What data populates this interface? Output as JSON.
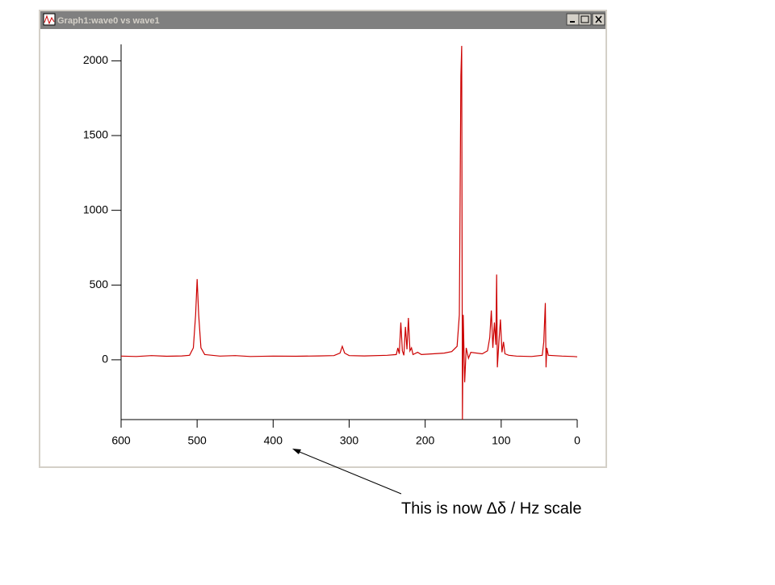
{
  "window": {
    "title": "Graph1:wave0 vs wave1"
  },
  "chart_data": {
    "type": "line",
    "annotation": "This is now Δδ / Hz scale",
    "x": [
      600,
      580,
      560,
      540,
      520,
      510,
      505,
      502,
      500,
      498,
      495,
      490,
      470,
      450,
      430,
      400,
      370,
      340,
      320,
      312,
      309,
      306,
      300,
      280,
      250,
      238,
      236,
      234,
      232,
      230,
      228,
      226,
      224,
      222,
      220,
      218,
      216,
      210,
      205,
      190,
      175,
      165,
      158,
      155,
      153,
      152,
      151,
      150,
      148,
      146,
      143,
      140,
      125,
      118,
      115,
      113,
      111,
      109,
      107,
      106,
      105,
      103,
      101,
      99,
      97,
      95,
      90,
      80,
      60,
      46,
      44,
      42,
      41,
      40,
      38,
      20,
      5,
      0
    ],
    "values": [
      25,
      22,
      28,
      24,
      26,
      30,
      80,
      300,
      540,
      300,
      80,
      35,
      25,
      28,
      22,
      25,
      24,
      26,
      28,
      45,
      90,
      45,
      28,
      26,
      30,
      35,
      80,
      40,
      250,
      60,
      30,
      220,
      70,
      280,
      60,
      80,
      35,
      50,
      35,
      40,
      45,
      55,
      90,
      300,
      1900,
      2100,
      -400,
      300,
      -150,
      80,
      10,
      50,
      40,
      60,
      150,
      330,
      80,
      250,
      100,
      570,
      -50,
      120,
      270,
      50,
      120,
      40,
      30,
      25,
      22,
      30,
      120,
      380,
      -50,
      80,
      30,
      25,
      22,
      20
    ],
    "color": "#cc0000",
    "xlim": [
      600,
      0
    ],
    "xticks": [
      600,
      500,
      400,
      300,
      200,
      100,
      0
    ],
    "ylim": [
      -400,
      2110
    ],
    "yticks": [
      0,
      500,
      1000,
      1500,
      2000
    ]
  }
}
